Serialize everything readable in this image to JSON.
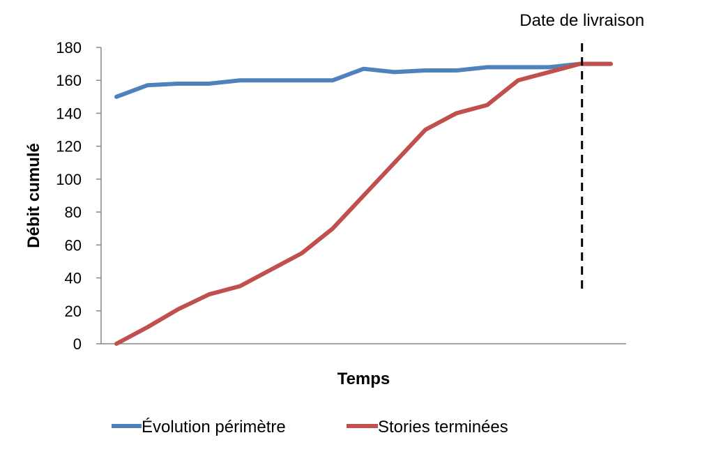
{
  "chart_data": {
    "type": "line",
    "title": "",
    "xlabel": "Temps",
    "ylabel": "Débit cumulé",
    "ylim": [
      0,
      180
    ],
    "yticks": [
      0,
      20,
      40,
      60,
      80,
      100,
      120,
      140,
      160,
      180
    ],
    "x": [
      1,
      2,
      3,
      4,
      5,
      6,
      7,
      8,
      9,
      10,
      11,
      12,
      13,
      14,
      15,
      16,
      17
    ],
    "xlim": [
      1,
      17
    ],
    "grid": false,
    "legend_position": "bottom",
    "series": [
      {
        "name": "Évolution périmètre",
        "color": "#4F81BD",
        "values": [
          150,
          157,
          158,
          158,
          160,
          160,
          160,
          160,
          167,
          165,
          166,
          166,
          168,
          168,
          168,
          170,
          170
        ]
      },
      {
        "name": "Stories terminées",
        "color": "#C0504D",
        "values": [
          0,
          10,
          21,
          30,
          35,
          45,
          55,
          70,
          90,
          110,
          130,
          140,
          145,
          160,
          165,
          170,
          170
        ]
      }
    ],
    "annotations": [
      {
        "label": "Date de livraison",
        "x": 16,
        "style": "dashed-vertical"
      }
    ]
  }
}
